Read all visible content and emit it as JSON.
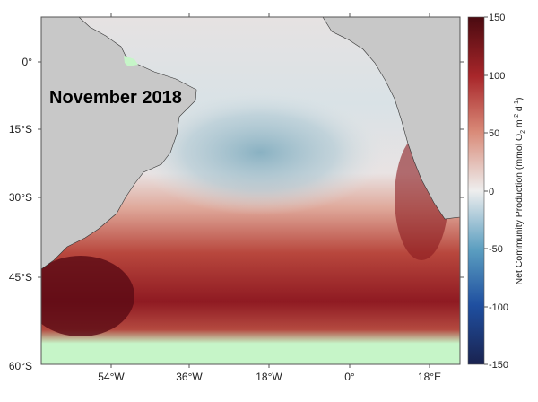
{
  "title": "November 2018",
  "lat_labels": [
    "0°",
    "15°S",
    "30°S",
    "45°S",
    "60°S"
  ],
  "lon_labels": [
    "54°W",
    "36°W",
    "18°W",
    "0°",
    "18°E"
  ],
  "colorbar": {
    "label_main": "Net Community Production (mmol O",
    "label_sub1": "2",
    "label_mid": " m",
    "label_sup1": "-2",
    "label_mid2": " d",
    "label_sup2": "-1",
    "label_end": ")",
    "ticks": [
      "150",
      "100",
      "50",
      "0",
      "-50",
      "-100",
      "-150"
    ],
    "range": [
      -150,
      150
    ],
    "colors": [
      "#1a2350",
      "#1f4fa0",
      "#5b9ec0",
      "#eeeeee",
      "#d98a78",
      "#a8262a",
      "#4a0a10"
    ]
  },
  "colors": {
    "land": "#c8c8c8",
    "no_data": "#c6f5c8"
  }
}
